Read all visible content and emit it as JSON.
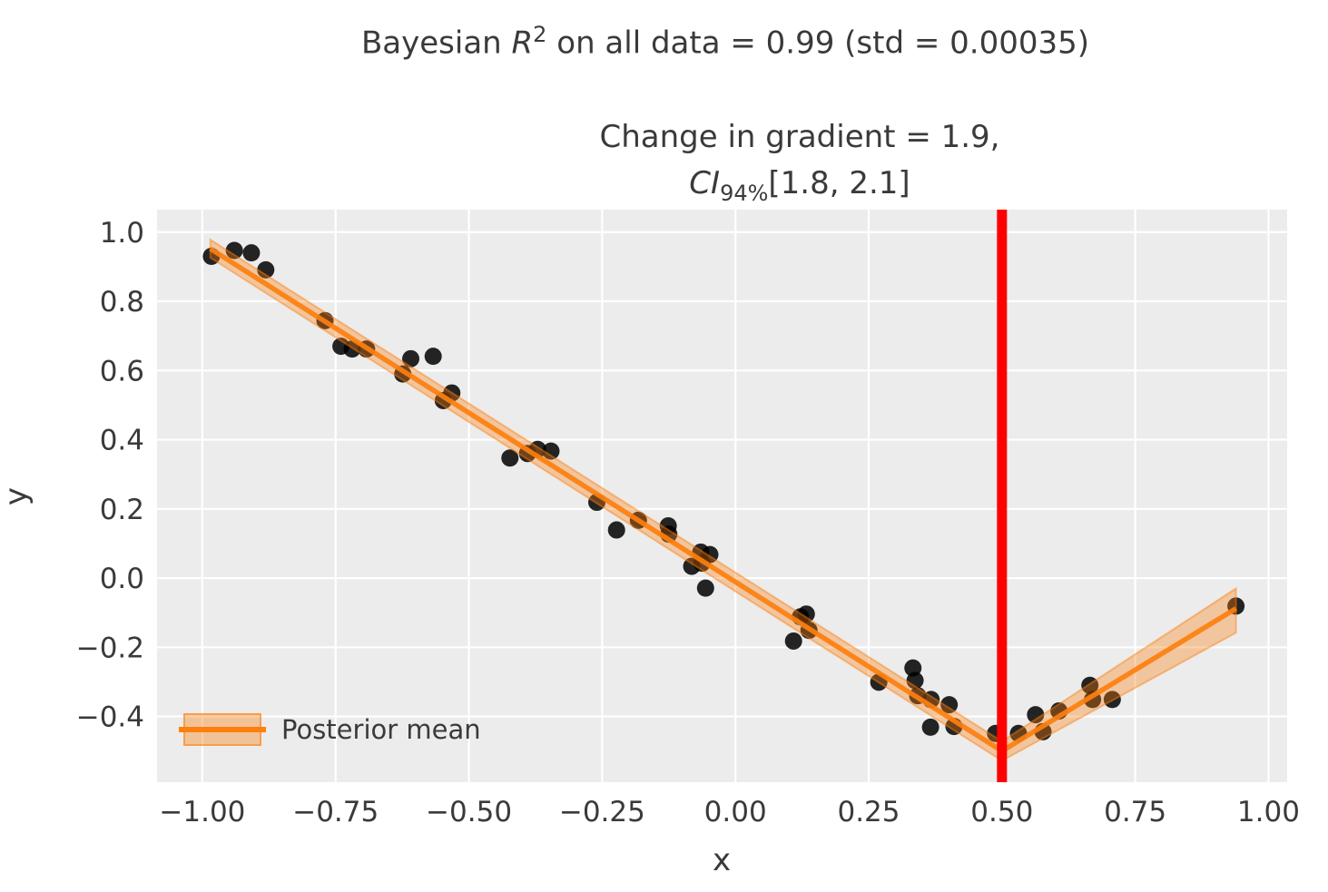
{
  "figure": {
    "title": {
      "prefix": "Bayesian ",
      "math_var": "R",
      "superscript": "2",
      "suffix": " on all data = 0.99 (std = 0.00035)"
    },
    "subtitle_line1": "Change in gradient = 1.9,",
    "subtitle_line2": {
      "math_var": "CI",
      "subscript": "94%",
      "suffix": "[1.8, 2.1]"
    }
  },
  "chart_data": {
    "type": "scatter",
    "title": "Bayesian R^2 on all data = 0.99 (std = 0.00035)",
    "subtitle": "Change in gradient = 1.9, CI_94% [1.8, 2.1]",
    "xlabel": "x",
    "ylabel": "y",
    "xlim": [
      -1.085,
      1.035
    ],
    "ylim": [
      -0.59,
      1.065
    ],
    "grid": true,
    "xticks": {
      "values": [
        -1.0,
        -0.75,
        -0.5,
        -0.25,
        0.0,
        0.25,
        0.5,
        0.75,
        1.0
      ],
      "labels": [
        "−1.00",
        "−0.75",
        "−0.50",
        "−0.25",
        "0.00",
        "0.25",
        "0.50",
        "0.75",
        "1.00"
      ]
    },
    "yticks": {
      "values": [
        1.0,
        0.8,
        0.6,
        0.4,
        0.2,
        0.0,
        -0.2,
        -0.4
      ],
      "labels": [
        "1.0",
        "0.8",
        "0.6",
        "0.4",
        "0.2",
        "0.0",
        "−0.2",
        "−0.4"
      ]
    },
    "legend": {
      "label": "Posterior mean",
      "position": "lower left"
    },
    "scatter": {
      "color": "#000000",
      "opacity": 0.85,
      "points": [
        [
          -0.983,
          0.93
        ],
        [
          -0.94,
          0.947
        ],
        [
          -0.908,
          0.94
        ],
        [
          -0.881,
          0.891
        ],
        [
          -0.77,
          0.744
        ],
        [
          -0.74,
          0.67
        ],
        [
          -0.719,
          0.662
        ],
        [
          -0.692,
          0.662
        ],
        [
          -0.624,
          0.59
        ],
        [
          -0.609,
          0.634
        ],
        [
          -0.567,
          0.641
        ],
        [
          -0.548,
          0.513
        ],
        [
          -0.532,
          0.535
        ],
        [
          -0.423,
          0.347
        ],
        [
          -0.39,
          0.36
        ],
        [
          -0.371,
          0.372
        ],
        [
          -0.346,
          0.367
        ],
        [
          -0.26,
          0.219
        ],
        [
          -0.223,
          0.139
        ],
        [
          -0.182,
          0.167
        ],
        [
          -0.126,
          0.151
        ],
        [
          -0.125,
          0.127
        ],
        [
          -0.082,
          0.034
        ],
        [
          -0.065,
          0.075
        ],
        [
          -0.063,
          0.043
        ],
        [
          -0.048,
          0.068
        ],
        [
          -0.056,
          -0.029
        ],
        [
          0.109,
          -0.182
        ],
        [
          0.122,
          -0.112
        ],
        [
          0.133,
          -0.104
        ],
        [
          0.138,
          -0.151
        ],
        [
          0.269,
          -0.301
        ],
        [
          0.333,
          -0.26
        ],
        [
          0.337,
          -0.296
        ],
        [
          0.342,
          -0.34
        ],
        [
          0.366,
          -0.431
        ],
        [
          0.367,
          -0.351
        ],
        [
          0.401,
          -0.366
        ],
        [
          0.41,
          -0.429
        ],
        [
          0.488,
          -0.449
        ],
        [
          0.531,
          -0.449
        ],
        [
          0.563,
          -0.395
        ],
        [
          0.577,
          -0.444
        ],
        [
          0.607,
          -0.384
        ],
        [
          0.665,
          -0.31
        ],
        [
          0.67,
          -0.351
        ],
        [
          0.707,
          -0.351
        ],
        [
          0.939,
          -0.081
        ]
      ]
    },
    "posterior_mean": {
      "color": "#fd7f0e",
      "line_width": 5.5,
      "segments": [
        [
          [
            -0.985,
            0.952
          ],
          [
            0.5,
            -0.5
          ]
        ],
        [
          [
            0.5,
            -0.5
          ],
          [
            0.939,
            -0.088
          ]
        ]
      ]
    },
    "credible_band": {
      "color": "#fd7f0e",
      "opacity": 0.35,
      "polygons": [
        [
          [
            -0.985,
            0.978
          ],
          [
            0.5,
            -0.472
          ],
          [
            0.5,
            -0.528
          ],
          [
            -0.985,
            0.926
          ]
        ],
        [
          [
            0.5,
            -0.472
          ],
          [
            0.939,
            -0.03
          ],
          [
            0.939,
            -0.158
          ],
          [
            0.5,
            -0.528
          ]
        ]
      ]
    },
    "changepoint_vline": {
      "x": 0.5,
      "color": "#fe0000",
      "line_width": 11
    },
    "colors": {
      "figure_background": "#ffffff",
      "axes_background": "#ececec",
      "grid": "#ffffff",
      "tick_text": "#3a3a3a"
    }
  }
}
